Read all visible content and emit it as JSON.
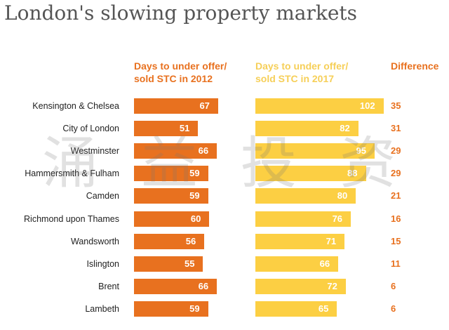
{
  "chart_data": {
    "type": "bar",
    "title": "London's slowing property markets",
    "column_headers": {
      "y2012": "Days to under offer/\nsold STC in 2012",
      "y2017": "Days to under offer/\nsold STC in 2017",
      "difference": "Difference"
    },
    "categories": [
      "Kensington & Chelsea",
      "City of London",
      "Westminster",
      "Hammersmith & Fulham",
      "Camden",
      "Richmond upon Thames",
      "Wandsworth",
      "Islington",
      "Brent",
      "Lambeth"
    ],
    "series": [
      {
        "name": "Days to under offer/ sold STC in 2012",
        "values": [
          67,
          51,
          66,
          59,
          59,
          60,
          56,
          55,
          66,
          59
        ]
      },
      {
        "name": "Days to under offer/ sold STC in 2017",
        "values": [
          102,
          82,
          95,
          88,
          80,
          76,
          71,
          66,
          72,
          65
        ]
      }
    ],
    "difference": [
      35,
      31,
      29,
      29,
      21,
      16,
      15,
      11,
      6,
      6
    ],
    "colors": {
      "y2012": "#e8711f",
      "y2017": "#fccf43",
      "difference": "#e8711f"
    }
  },
  "watermark": "涌 益 投 资"
}
